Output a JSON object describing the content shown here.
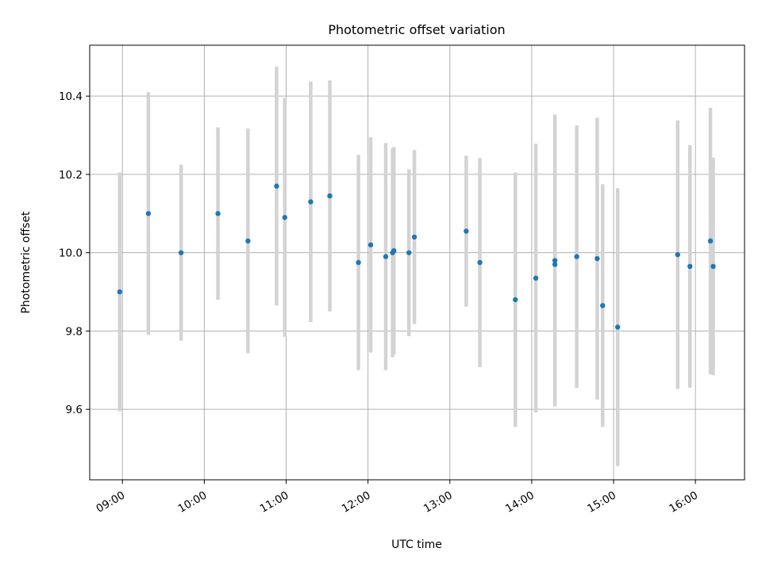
{
  "chart_data": {
    "type": "scatter",
    "title": "Photometric offset variation",
    "xlabel": "UTC time",
    "ylabel": "Photometric offset",
    "x_tick_labels": [
      "09:00",
      "10:00",
      "11:00",
      "12:00",
      "13:00",
      "14:00",
      "15:00",
      "16:00"
    ],
    "y_tick_labels": [
      "9.6",
      "9.8",
      "10.0",
      "10.2",
      "10.4"
    ],
    "y_ticks": [
      9.6,
      9.8,
      10.0,
      10.2,
      10.4
    ],
    "xlim": [
      "08:36",
      "16:36"
    ],
    "ylim": [
      9.42,
      10.53
    ],
    "grid": true,
    "marker_color": "#1f77b4",
    "errorbar_color": "#d3d3d3",
    "points": [
      {
        "time": "08:58",
        "y": 9.9,
        "err": 0.305
      },
      {
        "time": "09:19",
        "y": 10.1,
        "err": 0.31
      },
      {
        "time": "09:43",
        "y": 10.0,
        "err": 0.225
      },
      {
        "time": "10:10",
        "y": 10.1,
        "err": 0.22
      },
      {
        "time": "10:32",
        "y": 10.03,
        "err": 0.287
      },
      {
        "time": "10:53",
        "y": 10.17,
        "err": 0.305
      },
      {
        "time": "10:59",
        "y": 10.09,
        "err": 0.305
      },
      {
        "time": "11:18",
        "y": 10.13,
        "err": 0.307
      },
      {
        "time": "11:32",
        "y": 10.145,
        "err": 0.295
      },
      {
        "time": "11:53",
        "y": 9.975,
        "err": 0.275
      },
      {
        "time": "12:02",
        "y": 10.02,
        "err": 0.275
      },
      {
        "time": "12:13",
        "y": 9.99,
        "err": 0.29
      },
      {
        "time": "12:18",
        "y": 10.0,
        "err": 0.267
      },
      {
        "time": "12:19",
        "y": 10.005,
        "err": 0.265
      },
      {
        "time": "12:30",
        "y": 10.0,
        "err": 0.213
      },
      {
        "time": "12:34",
        "y": 10.04,
        "err": 0.222
      },
      {
        "time": "13:12",
        "y": 10.055,
        "err": 0.193
      },
      {
        "time": "13:22",
        "y": 9.975,
        "err": 0.267
      },
      {
        "time": "13:48",
        "y": 9.88,
        "err": 0.325
      },
      {
        "time": "14:03",
        "y": 9.935,
        "err": 0.343
      },
      {
        "time": "14:17",
        "y": 9.98,
        "err": 0.373
      },
      {
        "time": "14:17",
        "y": 9.97,
        "err": 0.0
      },
      {
        "time": "14:33",
        "y": 9.99,
        "err": 0.335
      },
      {
        "time": "14:48",
        "y": 9.985,
        "err": 0.36
      },
      {
        "time": "14:52",
        "y": 9.865,
        "err": 0.31
      },
      {
        "time": "15:03",
        "y": 9.81,
        "err": 0.355
      },
      {
        "time": "15:47",
        "y": 9.995,
        "err": 0.343
      },
      {
        "time": "15:56",
        "y": 9.965,
        "err": 0.31
      },
      {
        "time": "16:11",
        "y": 10.03,
        "err": 0.34
      },
      {
        "time": "16:13",
        "y": 9.965,
        "err": 0.278
      }
    ]
  }
}
